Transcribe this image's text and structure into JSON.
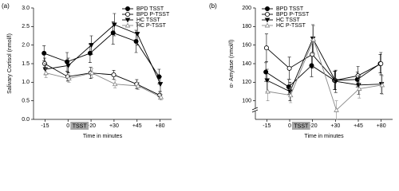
{
  "chart_data": [
    {
      "type": "line",
      "panel_label": "(a)",
      "ylabel": "Salivary Cortisol (nmol/l)",
      "xlabel": "Time in minutes",
      "annotation": "TSST",
      "categories": [
        "-15",
        "0",
        "+20",
        "+30",
        "+45",
        "+80"
      ],
      "ylim": [
        0,
        3.0
      ],
      "yticks": [
        {
          "value": 0,
          "label": "0.0"
        },
        0.5,
        {
          "value": 1,
          "label": "1.0"
        },
        1.5,
        {
          "value": 2,
          "label": "2.0"
        },
        2.5,
        {
          "value": 3,
          "label": "3.0"
        }
      ],
      "legend": "upper right",
      "series": [
        {
          "name": "BPD TSST",
          "color": "#000000",
          "marker": "circle-filled",
          "values": [
            1.78,
            1.55,
            1.78,
            2.33,
            2.1,
            1.15
          ],
          "errors": [
            0.2,
            0.25,
            0.25,
            0.3,
            0.3,
            0.2
          ]
        },
        {
          "name": "BPD P-TSST",
          "color": "#000000",
          "marker": "circle-open",
          "values": [
            1.5,
            1.15,
            1.25,
            1.2,
            0.95,
            0.65
          ],
          "errors": [
            0.15,
            0.12,
            0.15,
            0.12,
            0.12,
            0.1
          ]
        },
        {
          "name": "HC TSST",
          "color": "#000000",
          "marker": "triangle-down",
          "values": [
            1.35,
            1.45,
            2.0,
            2.55,
            2.3,
            0.95
          ],
          "errors": [
            0.15,
            0.2,
            0.25,
            0.3,
            0.3,
            0.2
          ]
        },
        {
          "name": "HC P-TSST",
          "color": "#888888",
          "marker": "triangle-up-open",
          "values": [
            1.25,
            1.1,
            1.25,
            0.95,
            0.9,
            0.6
          ],
          "errors": [
            0.12,
            0.1,
            0.12,
            0.1,
            0.1,
            0.08
          ]
        }
      ]
    },
    {
      "type": "line",
      "panel_label": "(b)",
      "ylabel": "α- Amylase (nmol/l)",
      "xlabel": "Time in minutes",
      "annotation": "TSST",
      "categories": [
        "-15",
        "0",
        "+20",
        "+30",
        "+45",
        "+80"
      ],
      "ylim": [
        80,
        200
      ],
      "yticks": [
        100,
        120,
        140,
        160,
        180,
        200
      ],
      "y_axis_break": true,
      "legend": "upper left",
      "series": [
        {
          "name": "BPD TSST",
          "color": "#000000",
          "marker": "circle-filled",
          "values": [
            131,
            115,
            138,
            122,
            123,
            140
          ],
          "errors": [
            10,
            8,
            12,
            10,
            8,
            10
          ]
        },
        {
          "name": "BPD P-TSST",
          "color": "#000000",
          "marker": "circle-open",
          "values": [
            157,
            135,
            150,
            122,
            127,
            140
          ],
          "errors": [
            15,
            12,
            15,
            10,
            10,
            12
          ]
        },
        {
          "name": "HC TSST",
          "color": "#000000",
          "marker": "triangle-down",
          "values": [
            122,
            110,
            167,
            121,
            117,
            118
          ],
          "errors": [
            12,
            10,
            15,
            12,
            10,
            10
          ]
        },
        {
          "name": "HC P-TSST",
          "color": "#888888",
          "marker": "triangle-up-open",
          "values": [
            110,
            106,
            166,
            90,
            113,
            117
          ],
          "errors": [
            10,
            8,
            15,
            10,
            10,
            10
          ]
        }
      ]
    }
  ]
}
